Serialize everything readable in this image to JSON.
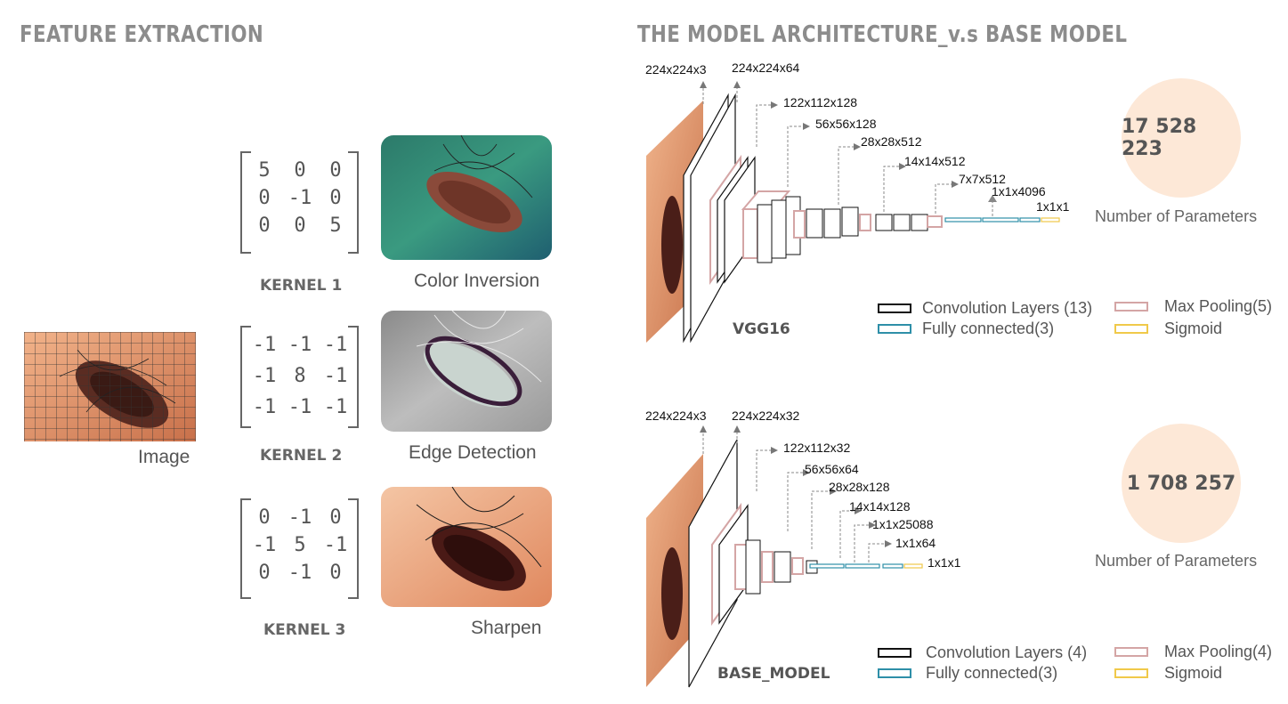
{
  "feature_extraction": {
    "title": "FEATURE EXTRACTION",
    "image_label": "Image",
    "kernels": [
      {
        "label": "KERNEL 1",
        "matrix": [
          "5",
          "0",
          "0",
          "0",
          "-1",
          "0",
          "0",
          "0",
          "5"
        ],
        "result_label": "Color Inversion"
      },
      {
        "label": "KERNEL 2",
        "matrix": [
          "-1",
          "-1",
          "-1",
          "-1",
          "8",
          "-1",
          "-1",
          "-1",
          "-1"
        ],
        "result_label": "Edge Detection"
      },
      {
        "label": "KERNEL 3",
        "matrix": [
          "0",
          "-1",
          "0",
          "-1",
          "5",
          "-1",
          "0",
          "-1",
          "0"
        ],
        "result_label": "Sharpen"
      }
    ]
  },
  "architecture": {
    "title": "THE MODEL ARCHITECTURE_v.s BASE MODEL",
    "vgg16": {
      "name": "VGG16",
      "dims": [
        "224x224x3",
        "224x224x64",
        "122x112x128",
        "56x56x128",
        "28x28x512",
        "14x14x512",
        "7x7x512",
        "1x1x4096",
        "1x1x1"
      ],
      "params": "17 528 223",
      "params_label": "Number of Parameters",
      "legend": {
        "conv": "Convolution Layers (13)",
        "pool": "Max Pooling(5)",
        "fc": "Fully connected(3)",
        "sigmoid": "Sigmoid"
      }
    },
    "base_model": {
      "name": "BASE_MODEL",
      "dims": [
        "224x224x3",
        "224x224x32",
        "122x112x32",
        "56x56x64",
        "28x28x128",
        "14x14x128",
        "1x1x25088",
        "1x1x64",
        "1x1x1"
      ],
      "params": "1 708 257",
      "params_label": "Number of Parameters",
      "legend": {
        "conv": "Convolution Layers (4)",
        "pool": "Max Pooling(4)",
        "fc": "Fully connected(3)",
        "sigmoid": "Sigmoid"
      }
    }
  },
  "colors": {
    "conv": "#111111",
    "pool": "#d4a5a5",
    "fc": "#2e8fa8",
    "sigmoid": "#f0c94a",
    "param_circle": "#fde8d7",
    "title": "#8c8c8c"
  }
}
